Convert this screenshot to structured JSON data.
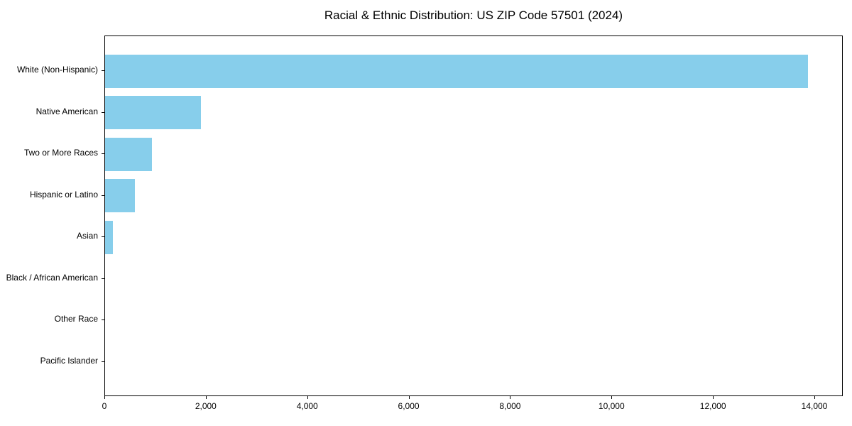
{
  "chart_data": {
    "type": "bar",
    "orientation": "horizontal",
    "title": "Racial & Ethnic Distribution: US ZIP Code 57501 (2024)",
    "categories": [
      "White (Non-Hispanic)",
      "Native American",
      "Two or More Races",
      "Hispanic or Latino",
      "Asian",
      "Black / African American",
      "Other Race",
      "Pacific Islander"
    ],
    "values": [
      13860,
      1890,
      920,
      585,
      150,
      0,
      0,
      0
    ],
    "xlabel": "",
    "ylabel": "",
    "xlim": [
      0,
      14560
    ],
    "x_ticks": [
      0,
      2000,
      4000,
      6000,
      8000,
      10000,
      12000,
      14000
    ],
    "x_tick_labels": [
      "0",
      "2,000",
      "4,000",
      "6,000",
      "8,000",
      "10,000",
      "12,000",
      "14,000"
    ],
    "bar_color": "#87CEEB",
    "grid": false,
    "legend": null
  }
}
